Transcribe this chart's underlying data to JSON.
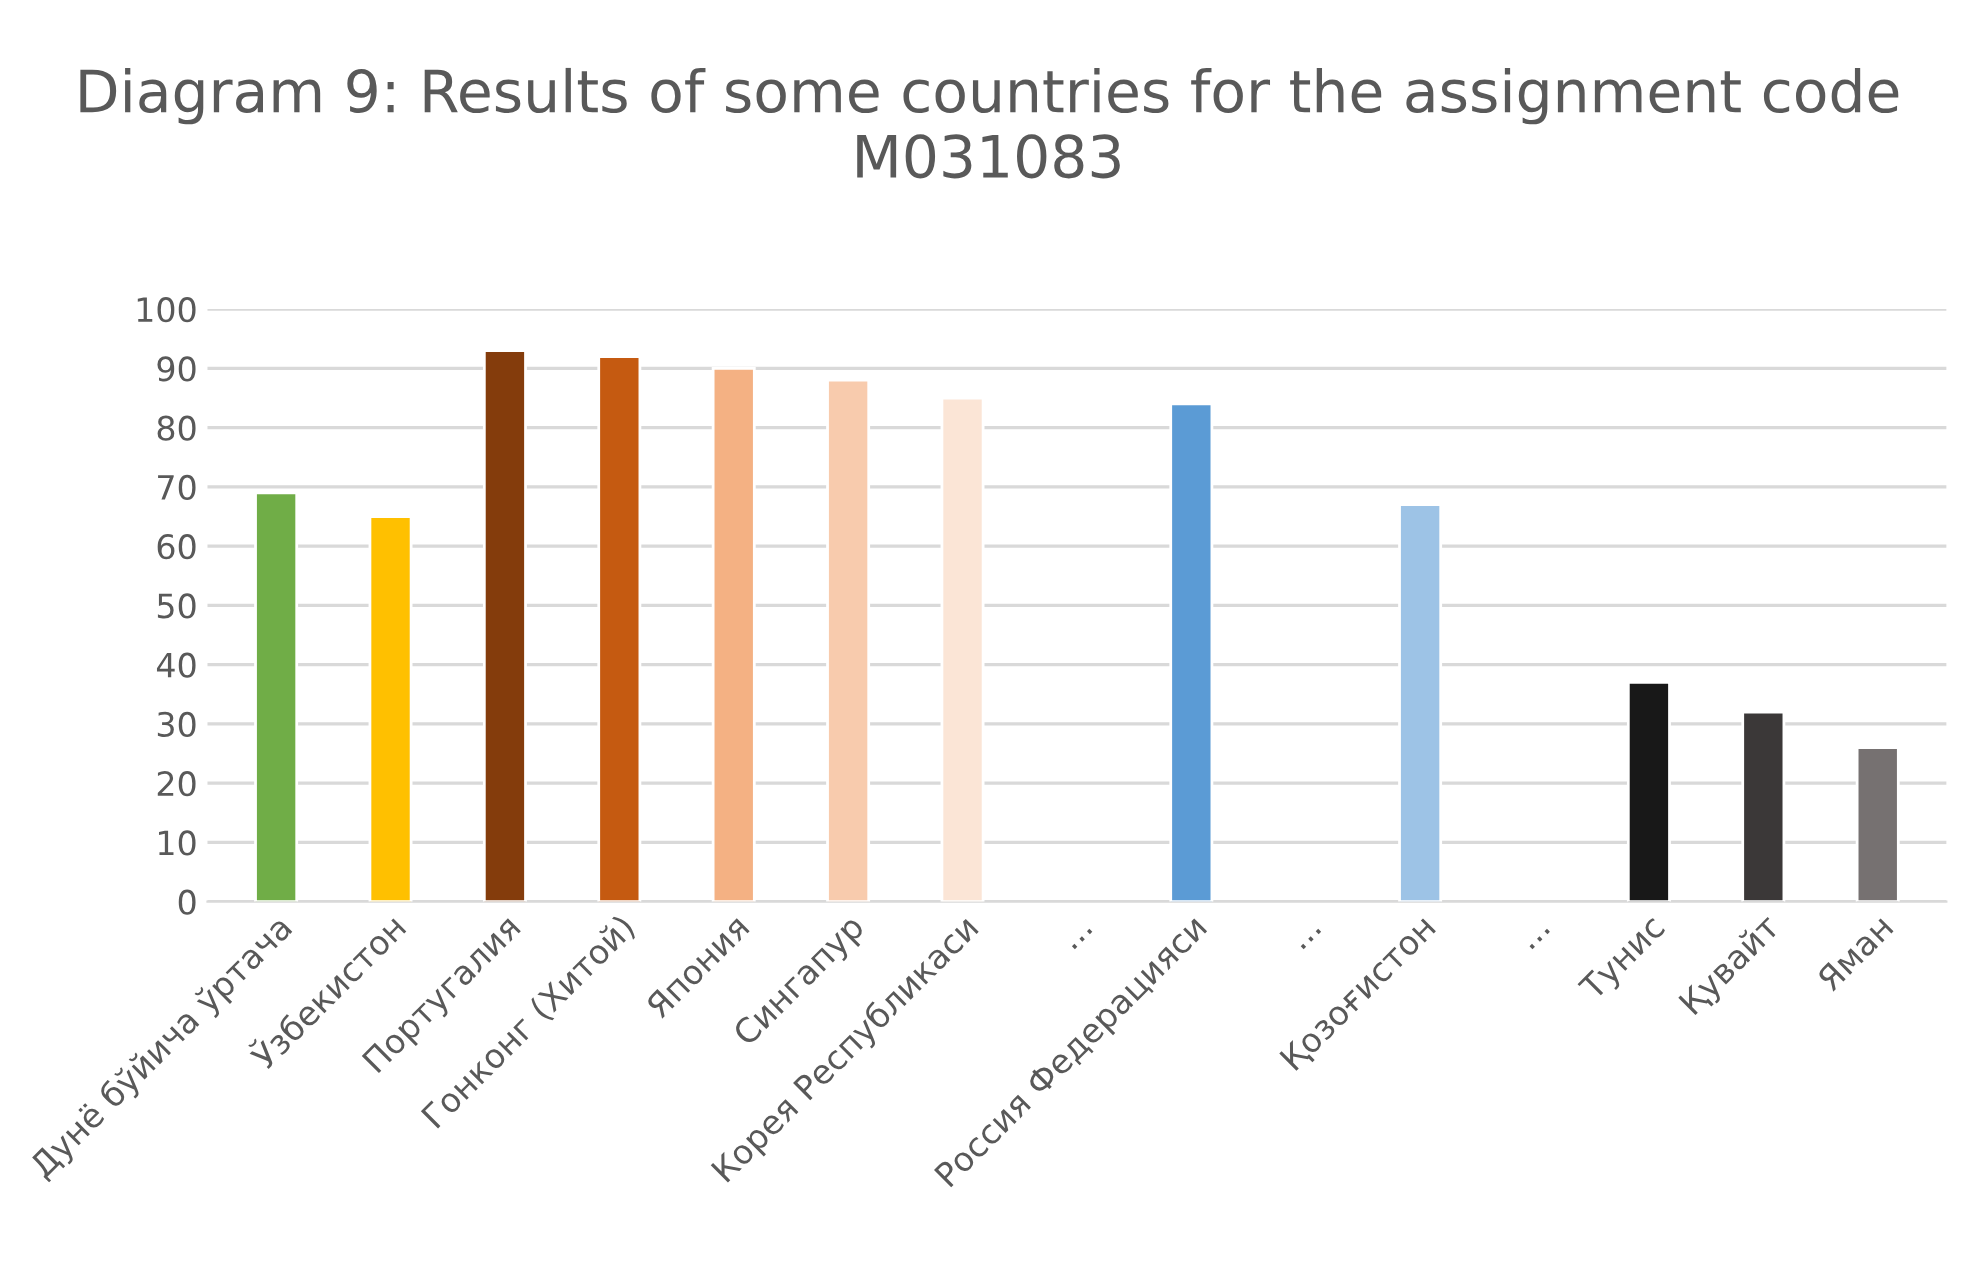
{
  "chart_data": {
    "type": "bar",
    "title": "Diagram 9: Results of some countries for the assignment code M031083",
    "categories": [
      "Дунё бўйича ўртача",
      "Ўзбекистон",
      "Португалия",
      "Гонконг (Хитой)",
      "Япония",
      "Сингапур",
      "Корея Республикаси",
      "...",
      "Россия Федерацияси",
      "...",
      "Қозоғистон",
      "...",
      "Тунис",
      "Қувайт",
      "Яман"
    ],
    "values": [
      69,
      65,
      93,
      92,
      90,
      88,
      85,
      null,
      84,
      null,
      67,
      null,
      37,
      32,
      26
    ],
    "colors": [
      "#70ad47",
      "#ffc000",
      "#843c0c",
      "#c55a11",
      "#f4b183",
      "#f8cbad",
      "#fbe5d6",
      null,
      "#5b9bd5",
      null,
      "#9dc3e6",
      null,
      "#181818",
      "#3b3838",
      "#767171"
    ],
    "ylim": [
      0,
      100
    ],
    "yticks": [
      0,
      10,
      20,
      30,
      40,
      50,
      60,
      70,
      80,
      90,
      100
    ],
    "grid": "y",
    "legend": false
  }
}
